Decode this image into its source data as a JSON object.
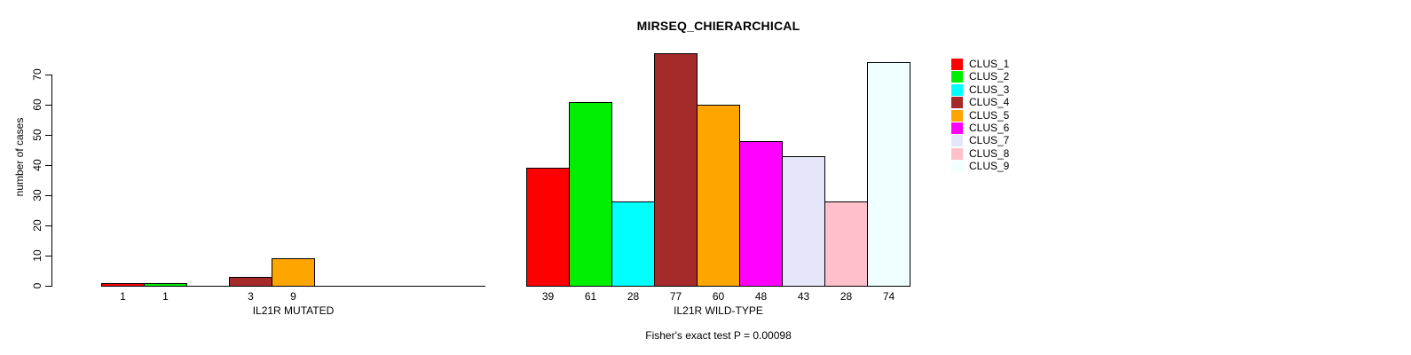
{
  "chart_data": {
    "type": "bar",
    "title": "MIRSEQ_CHIERARCHICAL",
    "ylabel": "number of cases",
    "ylim": [
      0,
      70
    ],
    "ytick_labels": [
      "0",
      "10",
      "20",
      "30",
      "40",
      "50",
      "60",
      "70"
    ],
    "grid": false,
    "legend_position": "right",
    "legend": [
      {
        "label": "CLUS_1",
        "color": "#FF0000"
      },
      {
        "label": "CLUS_2",
        "color": "#00EE00"
      },
      {
        "label": "CLUS_3",
        "color": "#00FFFF"
      },
      {
        "label": "CLUS_4",
        "color": "#A52A2A"
      },
      {
        "label": "CLUS_5",
        "color": "#FFA500"
      },
      {
        "label": "CLUS_6",
        "color": "#FF00FF"
      },
      {
        "label": "CLUS_7",
        "color": "#E6E6FA"
      },
      {
        "label": "CLUS_8",
        "color": "#FFC0CB"
      },
      {
        "label": "CLUS_9",
        "color": "#F0FFFF"
      }
    ],
    "groups": [
      {
        "xlabel": "IL21R MUTATED",
        "values": [
          1,
          1,
          0,
          3,
          9,
          0,
          0,
          0,
          0
        ],
        "bar_labels": [
          "1",
          "1",
          "",
          "3",
          "9",
          "",
          "",
          "",
          ""
        ]
      },
      {
        "xlabel": "IL21R WILD-TYPE",
        "values": [
          39,
          61,
          28,
          77,
          60,
          48,
          43,
          28,
          74
        ],
        "bar_labels": [
          "39",
          "61",
          "28",
          "77",
          "60",
          "48",
          "43",
          "28",
          "74"
        ]
      }
    ],
    "annotation": "Fisher's exact test P = 0.00098"
  }
}
